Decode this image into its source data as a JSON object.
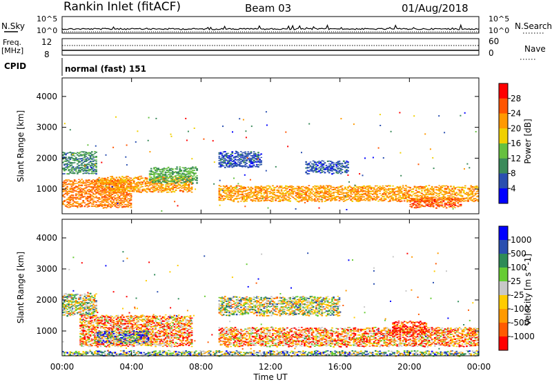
{
  "header": {
    "station": "Rankin Inlet (fitACF)",
    "beam": "Beam 03",
    "date": "01/Aug/2018"
  },
  "top_panels": {
    "nsky_label": "N.Sky",
    "nsearch_label": "N.Search",
    "nsky_ticks": [
      "10^5",
      "10^0"
    ],
    "nsearch_ticks": [
      "10^5",
      "10^0"
    ],
    "freq_label": "Freq.",
    "freq_unit": "[MHz]",
    "freq_ticks": [
      "12",
      "8"
    ],
    "nave_label": "Nave",
    "nave_ticks": [
      "60",
      "0"
    ],
    "cpid_label": "CPID",
    "cpid_value": "normal (fast) 151"
  },
  "colors": {
    "power": [
      "#0000ff",
      "#2a4fb0",
      "#3a8a5a",
      "#66c040",
      "#f0d000",
      "#ff9900",
      "#ff5500",
      "#ff0000"
    ],
    "velocity": [
      "#ff0000",
      "#ff5a00",
      "#ff9a00",
      "#ffcc00",
      "#c8c8c8",
      "#66cc33",
      "#2e8b57",
      "#2a4fb0",
      "#0000ff"
    ]
  },
  "chart_data": [
    {
      "type": "heatmap",
      "title": "Power",
      "xlabel": "Time UT",
      "ylabel": "Slant Range [km]",
      "x_ticks": [
        "00:00",
        "04:00",
        "08:00",
        "12:00",
        "16:00",
        "20:00",
        "00:00"
      ],
      "y_ticks": [
        1000,
        2000,
        3000,
        4000
      ],
      "ylim": [
        200,
        4600
      ],
      "colorbar_label": "Power [dB]",
      "colorbar_ticks": [
        4,
        8,
        12,
        16,
        20,
        24,
        28
      ],
      "colorbar_range": [
        0,
        32
      ],
      "bands": [
        {
          "t0": 0.0,
          "t1": 4.0,
          "r0": 400,
          "r1": 1300,
          "level": 24
        },
        {
          "t0": 0.0,
          "t1": 2.0,
          "r0": 1500,
          "r1": 2200,
          "level": 10
        },
        {
          "t0": 2.0,
          "t1": 7.5,
          "r0": 900,
          "r1": 1400,
          "level": 22
        },
        {
          "t0": 5.0,
          "t1": 7.8,
          "r0": 1200,
          "r1": 1700,
          "level": 12
        },
        {
          "t0": 9.0,
          "t1": 24.0,
          "r0": 600,
          "r1": 1100,
          "level": 22
        },
        {
          "t0": 9.0,
          "t1": 11.5,
          "r0": 1700,
          "r1": 2200,
          "level": 6
        },
        {
          "t0": 14.0,
          "t1": 16.5,
          "r0": 1500,
          "r1": 1900,
          "level": 6
        },
        {
          "t0": 20.0,
          "t1": 23.0,
          "r0": 400,
          "r1": 700,
          "level": 26
        }
      ]
    },
    {
      "type": "heatmap",
      "title": "Velocity",
      "xlabel": "Time UT",
      "ylabel": "Slant Range [km]",
      "x_ticks": [
        "00:00",
        "04:00",
        "08:00",
        "12:00",
        "16:00",
        "20:00",
        "00:00"
      ],
      "y_ticks": [
        1000,
        2000,
        3000,
        4000
      ],
      "ylim": [
        200,
        4600
      ],
      "colorbar_label": "Velocity [m s^-1]",
      "colorbar_ticks": [
        "-1000",
        "-500",
        "-100",
        "-25",
        "25",
        "100",
        "500",
        "1000"
      ],
      "bands": [
        {
          "t0": 0.0,
          "t1": 2.0,
          "r0": 1500,
          "r1": 2200,
          "level": 4
        },
        {
          "t0": 1.0,
          "t1": 7.5,
          "r0": 500,
          "r1": 1500,
          "level": 2
        },
        {
          "t0": 2.0,
          "t1": 5.0,
          "r0": 600,
          "r1": 1000,
          "level": 6
        },
        {
          "t0": 9.0,
          "t1": 24.0,
          "r0": 500,
          "r1": 1100,
          "level": 2
        },
        {
          "t0": 19.0,
          "t1": 21.0,
          "r0": 900,
          "r1": 1300,
          "level": 0
        },
        {
          "t0": 9.0,
          "t1": 16.0,
          "r0": 1500,
          "r1": 2100,
          "level": 4
        },
        {
          "t0": 0.0,
          "t1": 24.0,
          "r0": 200,
          "r1": 350,
          "level": 5
        }
      ]
    }
  ]
}
